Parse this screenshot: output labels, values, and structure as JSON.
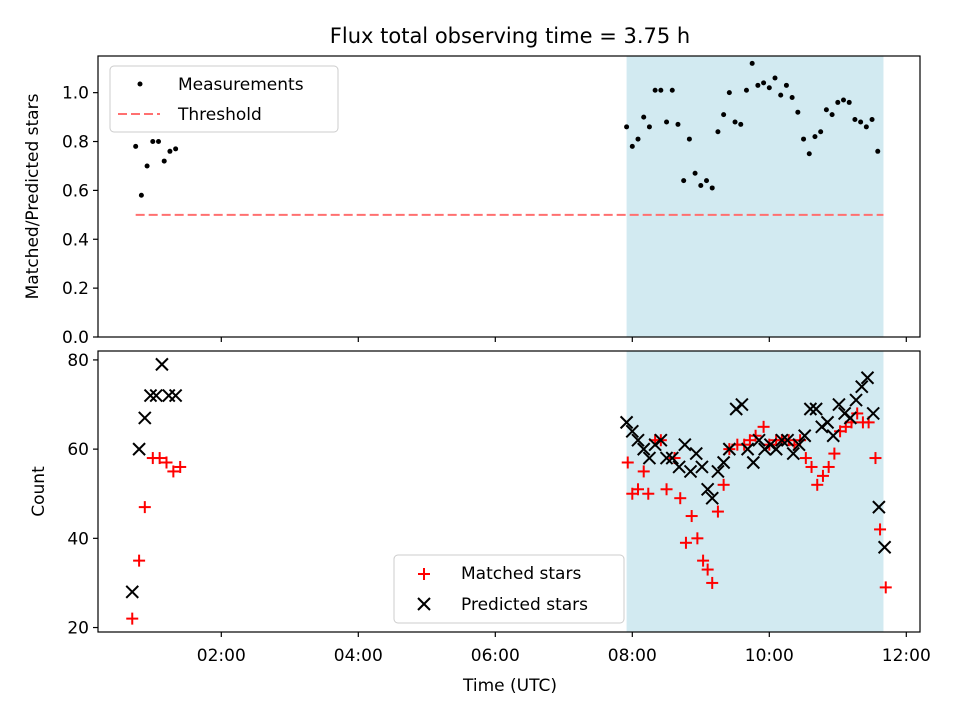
{
  "title": "Flux total observing time = 3.75 h",
  "colors": {
    "measurement": "#000000",
    "threshold": "#ff7070",
    "matched": "#ff0000",
    "predicted": "#000000",
    "observing_window": "#add8e6"
  },
  "chart_data": [
    {
      "type": "scatter",
      "panel": "top",
      "ylabel": "Matched/Predicted stars",
      "xlabel": "",
      "ylim": [
        0,
        1.15
      ],
      "yticks": [
        0.0,
        0.2,
        0.4,
        0.6,
        0.8,
        1.0
      ],
      "ytick_labels": [
        "0.0",
        "0.2",
        "0.4",
        "0.6",
        "0.8",
        "1.0"
      ],
      "legend": "upper-left",
      "observing_window": {
        "start": "07:55",
        "end": "11:40"
      },
      "series": [
        {
          "name": "Measurements",
          "marker": "dot",
          "points": [
            [
              "00:45",
              0.78
            ],
            [
              "00:50",
              0.58
            ],
            [
              "00:55",
              0.7
            ],
            [
              "01:00",
              0.8
            ],
            [
              "01:05",
              0.8
            ],
            [
              "01:10",
              0.72
            ],
            [
              "01:15",
              0.76
            ],
            [
              "01:20",
              0.77
            ],
            [
              "07:55",
              0.86
            ],
            [
              "08:00",
              0.78
            ],
            [
              "08:05",
              0.81
            ],
            [
              "08:10",
              0.9
            ],
            [
              "08:15",
              0.86
            ],
            [
              "08:20",
              1.01
            ],
            [
              "08:25",
              1.01
            ],
            [
              "08:30",
              0.88
            ],
            [
              "08:35",
              1.01
            ],
            [
              "08:40",
              0.87
            ],
            [
              "08:45",
              0.64
            ],
            [
              "08:50",
              0.81
            ],
            [
              "08:55",
              0.67
            ],
            [
              "09:00",
              0.62
            ],
            [
              "09:05",
              0.64
            ],
            [
              "09:10",
              0.61
            ],
            [
              "09:15",
              0.84
            ],
            [
              "09:20",
              0.91
            ],
            [
              "09:25",
              1.0
            ],
            [
              "09:30",
              0.88
            ],
            [
              "09:35",
              0.87
            ],
            [
              "09:40",
              1.01
            ],
            [
              "09:45",
              1.12
            ],
            [
              "09:50",
              1.03
            ],
            [
              "09:55",
              1.04
            ],
            [
              "10:00",
              1.02
            ],
            [
              "10:05",
              1.06
            ],
            [
              "10:10",
              0.99
            ],
            [
              "10:15",
              1.03
            ],
            [
              "10:20",
              0.98
            ],
            [
              "10:25",
              0.92
            ],
            [
              "10:30",
              0.81
            ],
            [
              "10:35",
              0.75
            ],
            [
              "10:40",
              0.82
            ],
            [
              "10:45",
              0.84
            ],
            [
              "10:50",
              0.93
            ],
            [
              "10:55",
              0.91
            ],
            [
              "11:00",
              0.96
            ],
            [
              "11:05",
              0.97
            ],
            [
              "11:10",
              0.96
            ],
            [
              "11:15",
              0.89
            ],
            [
              "11:20",
              0.88
            ],
            [
              "11:25",
              0.86
            ],
            [
              "11:30",
              0.89
            ],
            [
              "11:35",
              0.76
            ]
          ]
        },
        {
          "name": "Threshold",
          "marker": "dashed-line",
          "points": [
            [
              "00:45",
              0.5
            ],
            [
              "11:40",
              0.5
            ]
          ]
        }
      ]
    },
    {
      "type": "scatter",
      "panel": "bottom",
      "ylabel": "Count",
      "xlabel": "Time (UTC)",
      "ylim": [
        19,
        82
      ],
      "yticks": [
        20,
        40,
        60,
        80
      ],
      "ytick_labels": [
        "20",
        "40",
        "60",
        "80"
      ],
      "xlim": [
        "00:12",
        "12:12"
      ],
      "xticks": [
        "02:00",
        "04:00",
        "06:00",
        "08:00",
        "10:00",
        "12:00"
      ],
      "legend": "lower-center",
      "observing_window": {
        "start": "07:55",
        "end": "11:40"
      },
      "series": [
        {
          "name": "Matched stars",
          "marker": "plus",
          "points": [
            [
              "00:42",
              22
            ],
            [
              "00:48",
              35
            ],
            [
              "00:53",
              47
            ],
            [
              "01:00",
              58
            ],
            [
              "01:06",
              58
            ],
            [
              "01:12",
              57
            ],
            [
              "01:18",
              55
            ],
            [
              "01:24",
              56
            ],
            [
              "07:56",
              57
            ],
            [
              "08:00",
              50
            ],
            [
              "08:05",
              51
            ],
            [
              "08:10",
              55
            ],
            [
              "08:14",
              50
            ],
            [
              "08:20",
              62
            ],
            [
              "08:25",
              62
            ],
            [
              "08:30",
              51
            ],
            [
              "08:37",
              58
            ],
            [
              "08:42",
              49
            ],
            [
              "08:47",
              39
            ],
            [
              "08:52",
              45
            ],
            [
              "08:57",
              40
            ],
            [
              "09:02",
              35
            ],
            [
              "09:06",
              33
            ],
            [
              "09:10",
              30
            ],
            [
              "09:15",
              46
            ],
            [
              "09:20",
              52
            ],
            [
              "09:25",
              60
            ],
            [
              "09:32",
              61
            ],
            [
              "09:38",
              61
            ],
            [
              "09:43",
              62
            ],
            [
              "09:48",
              63
            ],
            [
              "09:55",
              65
            ],
            [
              "10:00",
              61
            ],
            [
              "10:06",
              62
            ],
            [
              "10:11",
              62
            ],
            [
              "10:17",
              62
            ],
            [
              "10:22",
              61
            ],
            [
              "10:27",
              62
            ],
            [
              "10:32",
              58
            ],
            [
              "10:37",
              56
            ],
            [
              "10:42",
              52
            ],
            [
              "10:47",
              54
            ],
            [
              "10:52",
              56
            ],
            [
              "10:57",
              59
            ],
            [
              "11:02",
              64
            ],
            [
              "11:07",
              65
            ],
            [
              "11:12",
              66
            ],
            [
              "11:17",
              68
            ],
            [
              "11:22",
              66
            ],
            [
              "11:27",
              66
            ],
            [
              "11:33",
              58
            ],
            [
              "11:37",
              42
            ],
            [
              "11:42",
              29
            ]
          ]
        },
        {
          "name": "Predicted stars",
          "marker": "x",
          "points": [
            [
              "00:42",
              28
            ],
            [
              "00:48",
              60
            ],
            [
              "00:53",
              67
            ],
            [
              "00:58",
              72
            ],
            [
              "01:03",
              72
            ],
            [
              "01:08",
              79
            ],
            [
              "01:14",
              72
            ],
            [
              "01:20",
              72
            ],
            [
              "07:55",
              66
            ],
            [
              "08:00",
              64
            ],
            [
              "08:05",
              62
            ],
            [
              "08:10",
              60
            ],
            [
              "08:15",
              58
            ],
            [
              "08:20",
              61
            ],
            [
              "08:25",
              62
            ],
            [
              "08:30",
              58
            ],
            [
              "08:35",
              58
            ],
            [
              "08:41",
              56
            ],
            [
              "08:46",
              61
            ],
            [
              "08:51",
              55
            ],
            [
              "08:56",
              59
            ],
            [
              "09:01",
              56
            ],
            [
              "09:06",
              51
            ],
            [
              "09:10",
              49
            ],
            [
              "09:15",
              55
            ],
            [
              "09:20",
              57
            ],
            [
              "09:25",
              60
            ],
            [
              "09:31",
              69
            ],
            [
              "09:36",
              70
            ],
            [
              "09:41",
              60
            ],
            [
              "09:46",
              57
            ],
            [
              "09:51",
              62
            ],
            [
              "09:56",
              60
            ],
            [
              "10:01",
              61
            ],
            [
              "10:06",
              60
            ],
            [
              "10:11",
              62
            ],
            [
              "10:16",
              62
            ],
            [
              "10:21",
              59
            ],
            [
              "10:26",
              61
            ],
            [
              "10:31",
              63
            ],
            [
              "10:36",
              69
            ],
            [
              "10:41",
              69
            ],
            [
              "10:46",
              65
            ],
            [
              "10:51",
              66
            ],
            [
              "10:56",
              63
            ],
            [
              "11:01",
              70
            ],
            [
              "11:06",
              68
            ],
            [
              "11:11",
              67
            ],
            [
              "11:16",
              71
            ],
            [
              "11:21",
              74
            ],
            [
              "11:26",
              76
            ],
            [
              "11:31",
              68
            ],
            [
              "11:36",
              47
            ],
            [
              "11:41",
              38
            ]
          ]
        }
      ]
    }
  ]
}
